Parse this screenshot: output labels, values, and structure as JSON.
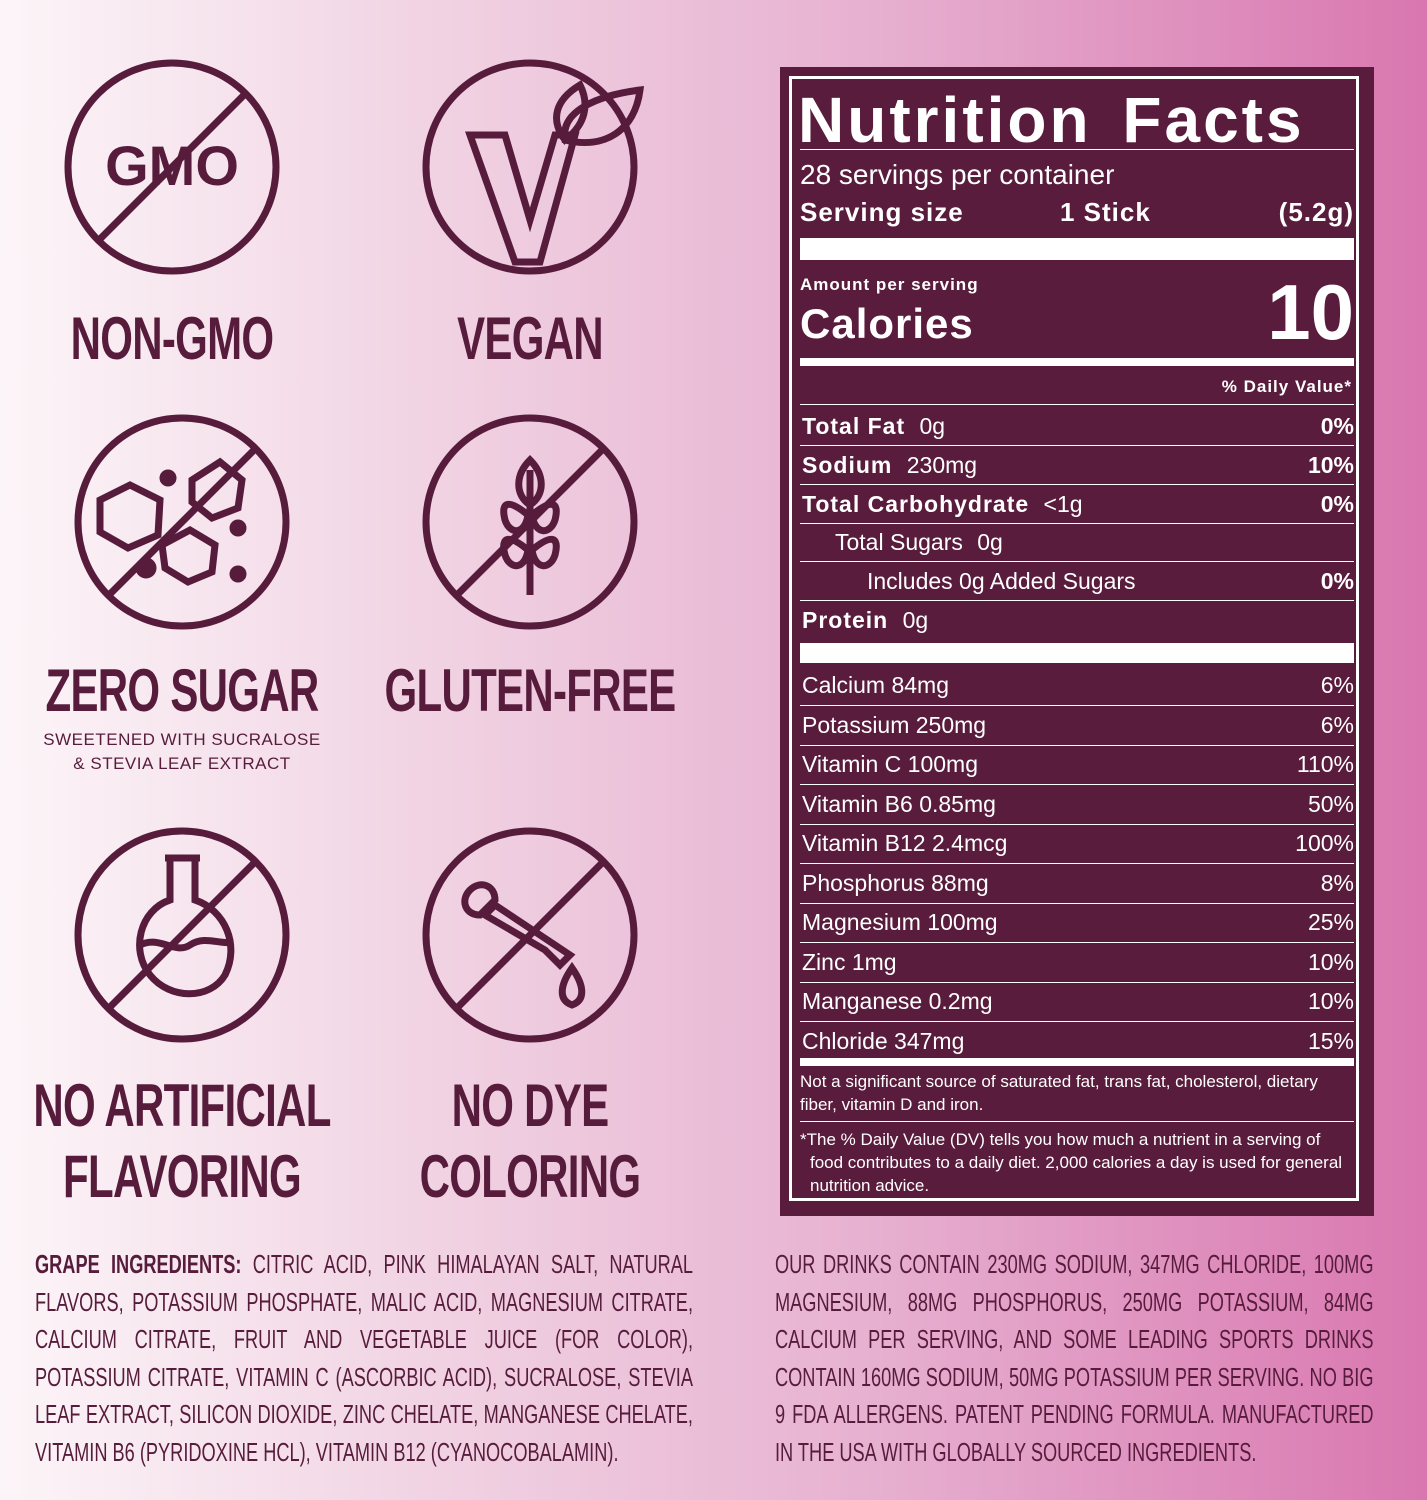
{
  "badges": [
    {
      "icon_text": "GMO",
      "lines": [
        "NON-GMO"
      ]
    },
    {
      "lines": [
        "VEGAN"
      ]
    },
    {
      "lines": [
        "ZERO SUGAR"
      ],
      "note": [
        "SWEETENED WITH SUCRALOSE",
        "&  STEVIA LEAF EXTRACT"
      ]
    },
    {
      "lines": [
        "GLUTEN-FREE"
      ]
    },
    {
      "lines": [
        "NO ARTIFICIAL",
        "FLAVORING"
      ]
    },
    {
      "lines": [
        "NO DYE",
        "COLORING"
      ]
    }
  ],
  "nutrition": {
    "title": "Nutrition Facts",
    "servings": "28 servings per container",
    "serving_size_label": "Serving size",
    "serving_size_amount": "1 Stick",
    "serving_size_weight": "(5.2g)",
    "amount_per_serving": "Amount per serving",
    "calories_label": "Calories",
    "calories": 10,
    "dv_header": "% Daily Value*",
    "rows": [
      {
        "name": "Total Fat",
        "amount": "0g",
        "dv": "0%"
      },
      {
        "name": "Sodium",
        "amount": "230mg",
        "dv": "10%"
      },
      {
        "name": "Total Carbohydrate",
        "amount": "<1g",
        "dv": "0%"
      },
      {
        "name": "Total Sugars",
        "amount": "0g"
      },
      {
        "name": "Includes 0g Added Sugars",
        "dv": "0%"
      },
      {
        "name": "Protein",
        "amount": "0g"
      }
    ],
    "vitamins": [
      {
        "name": "Calcium 84mg",
        "dv": "6%"
      },
      {
        "name": "Potassium 250mg",
        "dv": "6%"
      },
      {
        "name": "Vitamin C 100mg",
        "dv": "110%"
      },
      {
        "name": "Vitamin B6 0.85mg",
        "dv": "50%"
      },
      {
        "name": "Vitamin B12 2.4mcg",
        "dv": "100%"
      },
      {
        "name": "Phosphorus 88mg",
        "dv": "8%"
      },
      {
        "name": "Magnesium 100mg",
        "dv": "25%"
      },
      {
        "name": "Zinc 1mg",
        "dv": "10%"
      },
      {
        "name": "Manganese 0.2mg",
        "dv": "10%"
      },
      {
        "name": "Chloride 347mg",
        "dv": "15%"
      }
    ],
    "footnote_1": "Not a significant source of saturated fat, trans fat, cholesterol, dietary fiber, vitamin D and iron.",
    "footnote_2": "*The % Daily Value (DV) tells you how much a nutrient in a serving of food contributes to a daily diet. 2,000 calories a day is used for general nutrition advice."
  },
  "ingredients": {
    "label": "GRAPE INGREDIENTS:",
    "text": "CITRIC ACID, PINK HIMALAYAN SALT, NATURAL FLAVORS, POTASSIUM PHOSPHATE, MALIC ACID, MAGNESIUM CITRATE, CALCIUM CITRATE, FRUIT AND VEGETABLE JUICE (FOR COLOR), POTASSIUM CITRATE, VITAMIN C (ASCORBIC ACID), SUCRALOSE, STEVIA LEAF EXTRACT, SILICON DIOXIDE, ZINC CHELATE, MANGANESE CHELATE, VITAMIN B6 (PYRIDOXINE HCL), VITAMIN B12 (CYANOCOBALAMIN)."
  },
  "notes": "OUR DRINKS CONTAIN 230MG SODIUM, 347MG CHLORIDE,  100MG MAGNESIUM, 88MG PHOSPHORUS, 250MG POTASSIUM, 84MG CALCIUM PER SERVING, AND SOME LEADING SPORTS DRINKS CONTAIN 160MG SODIUM, 50MG POTASSIUM PER SERVING. NO BIG 9 FDA ALLERGENS. PATENT PENDING FORMULA. MANUFACTURED IN THE USA WITH GLOBALLY SOURCED INGREDIENTS."
}
